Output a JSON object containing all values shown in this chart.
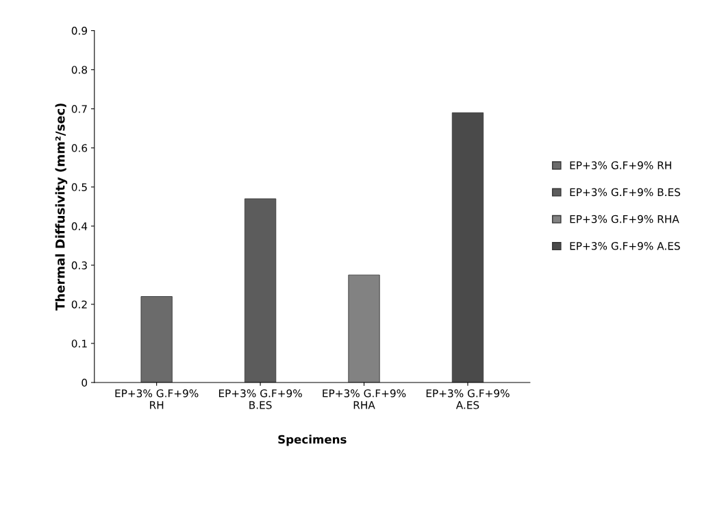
{
  "chart_data": {
    "type": "bar",
    "xlabel": "Specimens",
    "ylabel": "Thermal Diffusivity (mm²/sec)",
    "categories": [
      "EP+3% G.F+9% RH",
      "EP+3% G.F+9% B.ES",
      "EP+3% G.F+9% RHA",
      "EP+3% G.F+9% A.ES"
    ],
    "series": [
      {
        "name": "EP+3% G.F+9% RH",
        "color": "#6b6b6b",
        "values": [
          0.22,
          null,
          null,
          null
        ]
      },
      {
        "name": "EP+3% G.F+9% B.ES",
        "color": "#5c5c5c",
        "values": [
          null,
          0.47,
          null,
          null
        ]
      },
      {
        "name": "EP+3% G.F+9% RHA",
        "color": "#828282",
        "values": [
          null,
          null,
          0.275,
          null
        ]
      },
      {
        "name": "EP+3% G.F+9% A.ES",
        "color": "#4a4a4a",
        "values": [
          null,
          null,
          null,
          0.69
        ]
      }
    ],
    "ylim": [
      0,
      0.9
    ],
    "yticks": [
      0,
      0.1,
      0.2,
      0.3,
      0.4,
      0.5,
      0.6,
      0.7,
      0.8,
      0.9
    ],
    "grid": false,
    "legend": "right"
  }
}
